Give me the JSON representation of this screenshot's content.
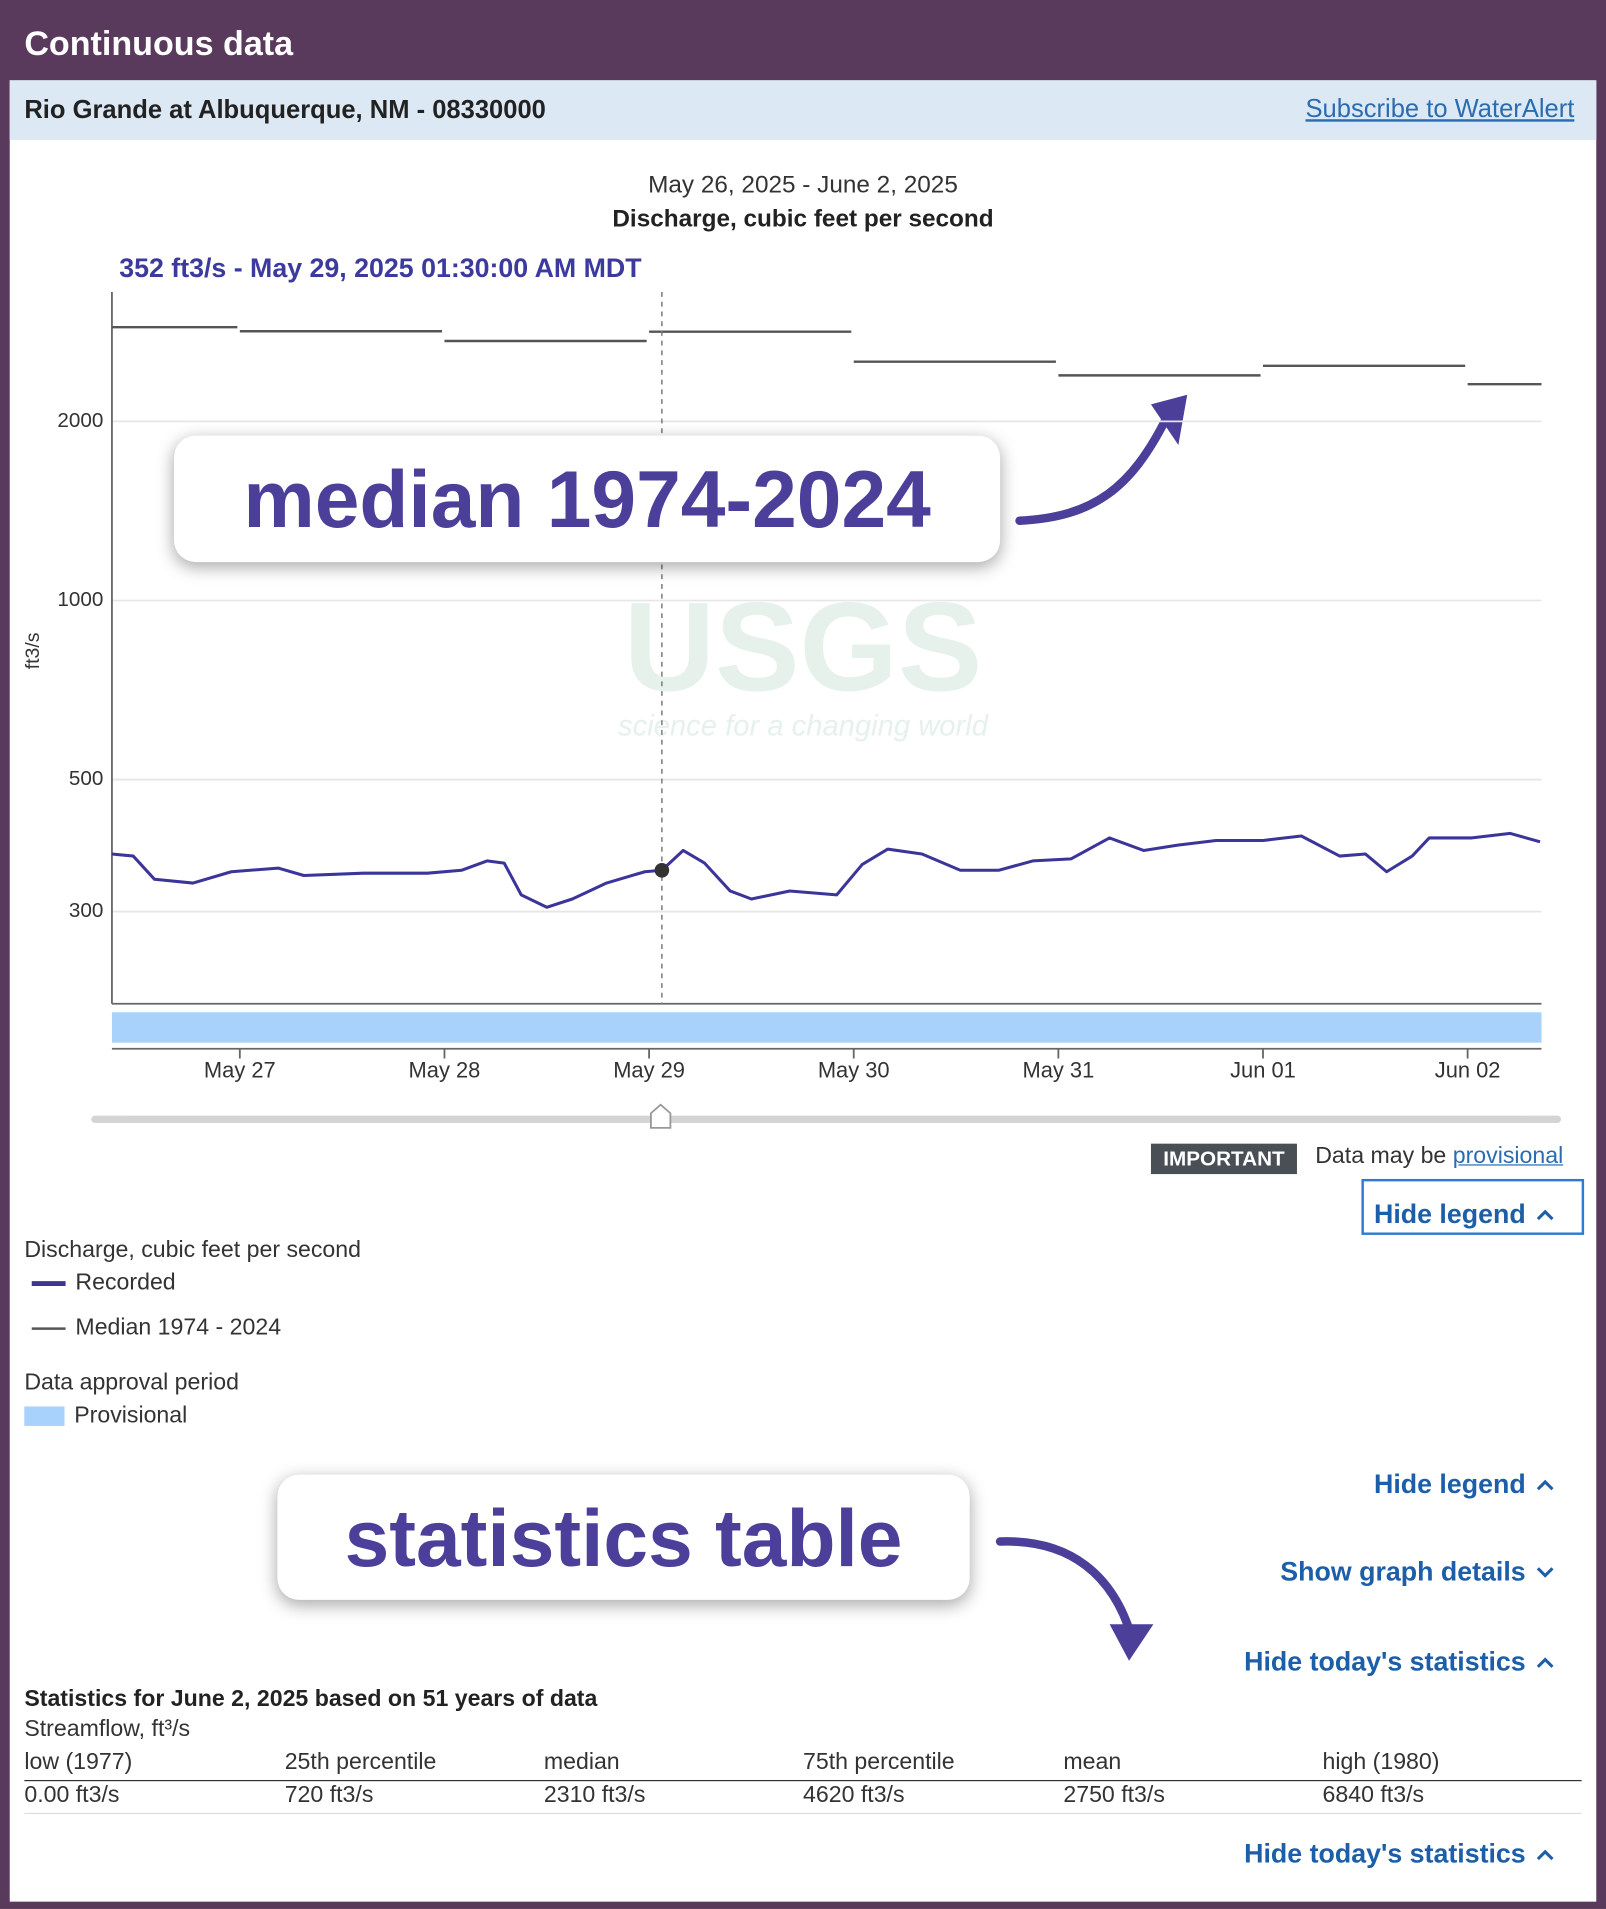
{
  "header": {
    "title": "Continuous data"
  },
  "site": {
    "name": "Rio Grande at Albuquerque, NM - 08330000",
    "link": "Subscribe to WaterAlert"
  },
  "chart_data": {
    "type": "line",
    "date_range": "May 26, 2025 - June 2, 2025",
    "title": "Discharge, cubic feet per second",
    "y_label": "ft3/s",
    "log_scale": true,
    "grid": true,
    "xlim": [
      "2025-05-26T09:00",
      "2025-06-02T08:40"
    ],
    "xticks": [
      {
        "value": "2025-05-27T00:00",
        "label": "May 27"
      },
      {
        "value": "2025-05-28T00:00",
        "label": "May 28"
      },
      {
        "value": "2025-05-29T00:00",
        "label": "May 29"
      },
      {
        "value": "2025-05-30T00:00",
        "label": "May 30"
      },
      {
        "value": "2025-05-31T00:00",
        "label": "May 31"
      },
      {
        "value": "2025-06-01T00:00",
        "label": "Jun 01"
      },
      {
        "value": "2025-06-02T00:00",
        "label": "Jun 02"
      }
    ],
    "ylim": [
      210,
      3300
    ],
    "yticks": [
      300,
      500,
      1000,
      2000
    ],
    "series": [
      {
        "name": "Recorded",
        "color": "#3b3599",
        "x": [
          "2025-05-26T09:00",
          "2025-05-26T11:30",
          "2025-05-26T14:00",
          "2025-05-26T18:30",
          "2025-05-26T23:00",
          "2025-05-27T04:30",
          "2025-05-27T07:30",
          "2025-05-27T14:30",
          "2025-05-27T22:00",
          "2025-05-28T02:00",
          "2025-05-28T05:00",
          "2025-05-28T07:00",
          "2025-05-28T09:00",
          "2025-05-28T12:00",
          "2025-05-28T15:00",
          "2025-05-28T19:00",
          "2025-05-28T23:30",
          "2025-05-29T01:30",
          "2025-05-29T04:00",
          "2025-05-29T06:30",
          "2025-05-29T09:30",
          "2025-05-29T12:00",
          "2025-05-29T16:30",
          "2025-05-29T22:00",
          "2025-05-30T01:00",
          "2025-05-30T04:00",
          "2025-05-30T08:00",
          "2025-05-30T12:30",
          "2025-05-30T17:00",
          "2025-05-30T21:00",
          "2025-05-31T01:30",
          "2025-05-31T06:00",
          "2025-05-31T10:00",
          "2025-05-31T14:00",
          "2025-05-31T18:30",
          "2025-06-01T00:00",
          "2025-06-01T04:30",
          "2025-06-01T09:00",
          "2025-06-01T12:00",
          "2025-06-01T14:30",
          "2025-06-01T17:30",
          "2025-06-01T19:30",
          "2025-06-02T00:30",
          "2025-06-02T05:00",
          "2025-06-02T08:30"
        ],
        "values": [
          375,
          372,
          340,
          335,
          350,
          355,
          345,
          348,
          348,
          352,
          365,
          362,
          320,
          305,
          315,
          335,
          350,
          352,
          380,
          362,
          325,
          315,
          325,
          320,
          360,
          382,
          375,
          352,
          352,
          365,
          368,
          399,
          380,
          388,
          395,
          395,
          402,
          372,
          375,
          350,
          372,
          399,
          399,
          406,
          393
        ]
      },
      {
        "name": "Median 1974 - 2024",
        "color": "#555555",
        "x": [
          "2025-05-26T00:00",
          "2025-05-27T00:00",
          "2025-05-28T00:00",
          "2025-05-29T00:00",
          "2025-05-30T00:00",
          "2025-05-31T00:00",
          "2025-06-01T00:00",
          "2025-06-02T00:00"
        ],
        "values": [
          2880,
          2835,
          2730,
          2830,
          2520,
          2390,
          2480,
          2310
        ]
      }
    ],
    "tooltip": {
      "text": "352 ft3/s - May 29, 2025 01:30:00 AM MDT",
      "x": "2025-05-29T01:30",
      "value": 352
    },
    "approval": {
      "title": "Data approval period",
      "name": "Provisional",
      "color": "#a8d1fb"
    },
    "watermark": {
      "logo": "USGS",
      "tagline": "science for a changing world"
    }
  },
  "annotations": [
    "median 1974-2024",
    "statistics table"
  ],
  "notice": {
    "badge": "IMPORTANT",
    "text": "Data may be",
    "link": "provisional"
  },
  "buttons": [
    "Hide legend",
    "Hide legend",
    "Show graph details",
    "Hide today's statistics",
    "Hide today's statistics"
  ],
  "statistics": {
    "title": "Statistics for June 2, 2025 based on 51 years of data",
    "subtitle": "Streamflow, ft³/s",
    "columns": [
      "low (1977)",
      "25th percentile",
      "median",
      "75th percentile",
      "mean",
      "high (1980)"
    ],
    "values": [
      "0.00 ft3/s",
      "720 ft3/s",
      "2310 ft3/s",
      "4620 ft3/s",
      "2750 ft3/s",
      "6840 ft3/s"
    ]
  }
}
